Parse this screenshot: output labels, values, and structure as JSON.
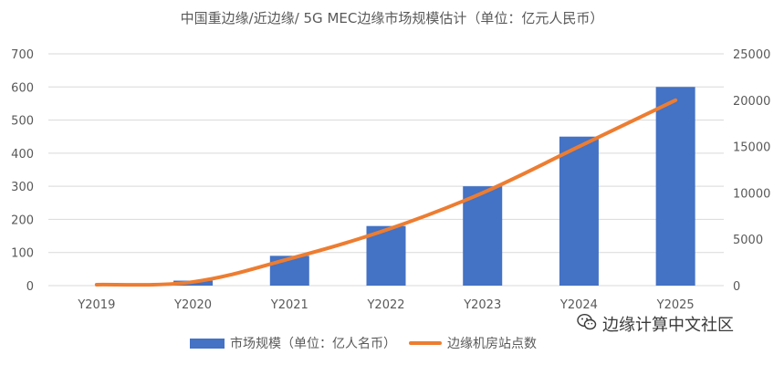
{
  "colors": {
    "bar": "#4472C4",
    "line": "#ED7D31",
    "grid": "#D9D9D9",
    "text": "#595959"
  },
  "chart_data": {
    "type": "bar",
    "title": "中国重边缘/近边缘/ 5G MEC边缘市场规模估计（单位：亿元人民币）",
    "categories": [
      "Y2019",
      "Y2020",
      "Y2021",
      "Y2022",
      "Y2023",
      "Y2024",
      "Y2025"
    ],
    "series": [
      {
        "name": "市场规模（单位：亿人名币）",
        "type": "bar",
        "axis": "left",
        "values": [
          0,
          15,
          90,
          180,
          300,
          450,
          600
        ]
      },
      {
        "name": "边缘机房站点数",
        "type": "line",
        "axis": "right",
        "values": [
          100,
          400,
          2900,
          6000,
          10000,
          15000,
          20000
        ]
      }
    ],
    "y_left": {
      "min": 0,
      "max": 700,
      "ticks": [
        0,
        100,
        200,
        300,
        400,
        500,
        600,
        700
      ]
    },
    "y_right": {
      "min": 0,
      "max": 25000,
      "ticks": [
        0,
        5000,
        10000,
        15000,
        20000,
        25000
      ]
    },
    "grid": true,
    "legend": "bottom"
  },
  "watermark": {
    "icon": "wechat-icon",
    "text": "边缘计算中文社区"
  }
}
